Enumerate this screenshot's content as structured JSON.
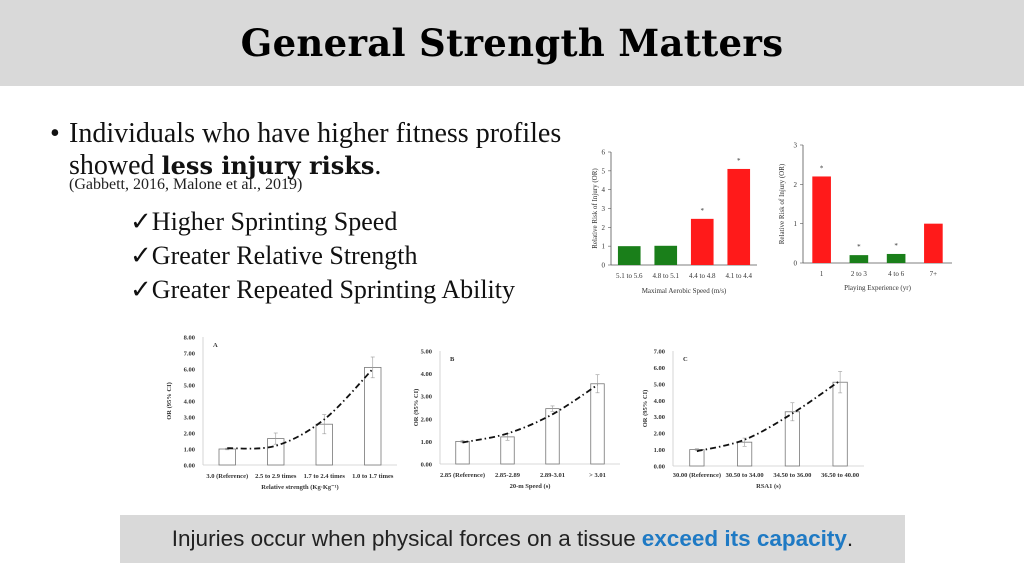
{
  "slide": {
    "title": "General Strength Matters",
    "bullet_text": "Individuals who have higher fitness profiles showed",
    "bullet_bold": "less injury risks",
    "bullet_end": ".",
    "citation": "(Gabbett, 2016, Malone et al., 2019)",
    "checks": [
      "Higher Sprinting Speed",
      "Greater Relative Strength",
      "Greater Repeated Sprinting Ability"
    ],
    "check_icon": "✓",
    "banner_text": "Injuries occur when physical forces on a tissue",
    "banner_highlight": "exceed its capacity",
    "banner_end": ".",
    "highlight_color": "#1f7ac4"
  },
  "chart_data": [
    {
      "id": "aerobic",
      "type": "bar",
      "title": "",
      "xlabel": "Maximal Aerobic Speed (m/s)",
      "ylabel": "Relative Risk of Injury (OR)",
      "categories": [
        "5.1 to 5.6",
        "4.8 to 5.1",
        "4.4 to 4.8",
        "4.1 to 4.4"
      ],
      "values": [
        1.0,
        1.02,
        2.45,
        5.1
      ],
      "colors": [
        "#1a7f1a",
        "#1a7f1a",
        "#ff1a1a",
        "#ff1a1a"
      ],
      "significant": [
        false,
        false,
        true,
        true
      ],
      "ylim": [
        0,
        6
      ],
      "yticks": [
        "0",
        "1",
        "2",
        "3",
        "4",
        "5",
        "6"
      ]
    },
    {
      "id": "experience",
      "type": "bar",
      "title": "",
      "xlabel": "Playing Experience (yr)",
      "ylabel": "Relative Risk of Injury (OR)",
      "categories": [
        "1",
        "2 to 3",
        "4 to 6",
        "7+"
      ],
      "values": [
        2.2,
        0.2,
        0.23,
        1.0
      ],
      "colors": [
        "#ff1a1a",
        "#1a7f1a",
        "#1a7f1a",
        "#ff1a1a"
      ],
      "significant": [
        true,
        true,
        true,
        false
      ],
      "ylim": [
        0,
        3
      ],
      "yticks": [
        "0",
        "1",
        "2",
        "3"
      ]
    },
    {
      "id": "strength",
      "type": "bar",
      "title": "A",
      "xlabel": "Relative strength (Kg·Kg⁻¹)",
      "ylabel": "OR (95% CI)",
      "categories": [
        "3.0 (Reference)",
        "2.5 to 2.9 times",
        "1.7 to 2.4 times",
        "1.0 to 1.7 times"
      ],
      "values": [
        1.0,
        1.65,
        2.55,
        6.1
      ],
      "error": [
        0.05,
        0.35,
        0.6,
        0.65
      ],
      "trend": [
        1.05,
        1.2,
        2.85,
        6.0
      ],
      "ylim": [
        0,
        8
      ],
      "yticks": [
        "0.00",
        "1.00",
        "2.00",
        "3.00",
        "4.00",
        "5.00",
        "6.00",
        "7.00",
        "8.00"
      ]
    },
    {
      "id": "speed",
      "type": "bar",
      "title": "B",
      "xlabel": "20-m Speed (s)",
      "ylabel": "OR (95% CI)",
      "categories": [
        "2.85 (Reference)",
        "2.85-2.89",
        "2.89-3.01",
        "> 3.01"
      ],
      "values": [
        1.0,
        1.2,
        2.45,
        3.55
      ],
      "error": [
        0.05,
        0.15,
        0.12,
        0.4
      ],
      "trend": [
        0.95,
        1.35,
        2.2,
        3.5
      ],
      "ylim": [
        0,
        5
      ],
      "yticks": [
        "0.00",
        "1.00",
        "2.00",
        "3.00",
        "4.00",
        "5.00"
      ]
    },
    {
      "id": "rsa",
      "type": "bar",
      "title": "C",
      "xlabel": "RSA1 (s)",
      "ylabel": "OR (95% CI)",
      "categories": [
        "30.00 (Reference)",
        "30.50 to 34.00",
        "34.50 to 36.00",
        "36.50 to 40.00"
      ],
      "values": [
        1.0,
        1.45,
        3.3,
        5.1
      ],
      "error": [
        0.05,
        0.25,
        0.55,
        0.65
      ],
      "trend": [
        0.9,
        1.6,
        3.2,
        5.2
      ],
      "ylim": [
        0,
        7
      ],
      "yticks": [
        "0.00",
        "1.00",
        "2.00",
        "3.00",
        "4.00",
        "5.00",
        "6.00",
        "7.00"
      ]
    }
  ]
}
